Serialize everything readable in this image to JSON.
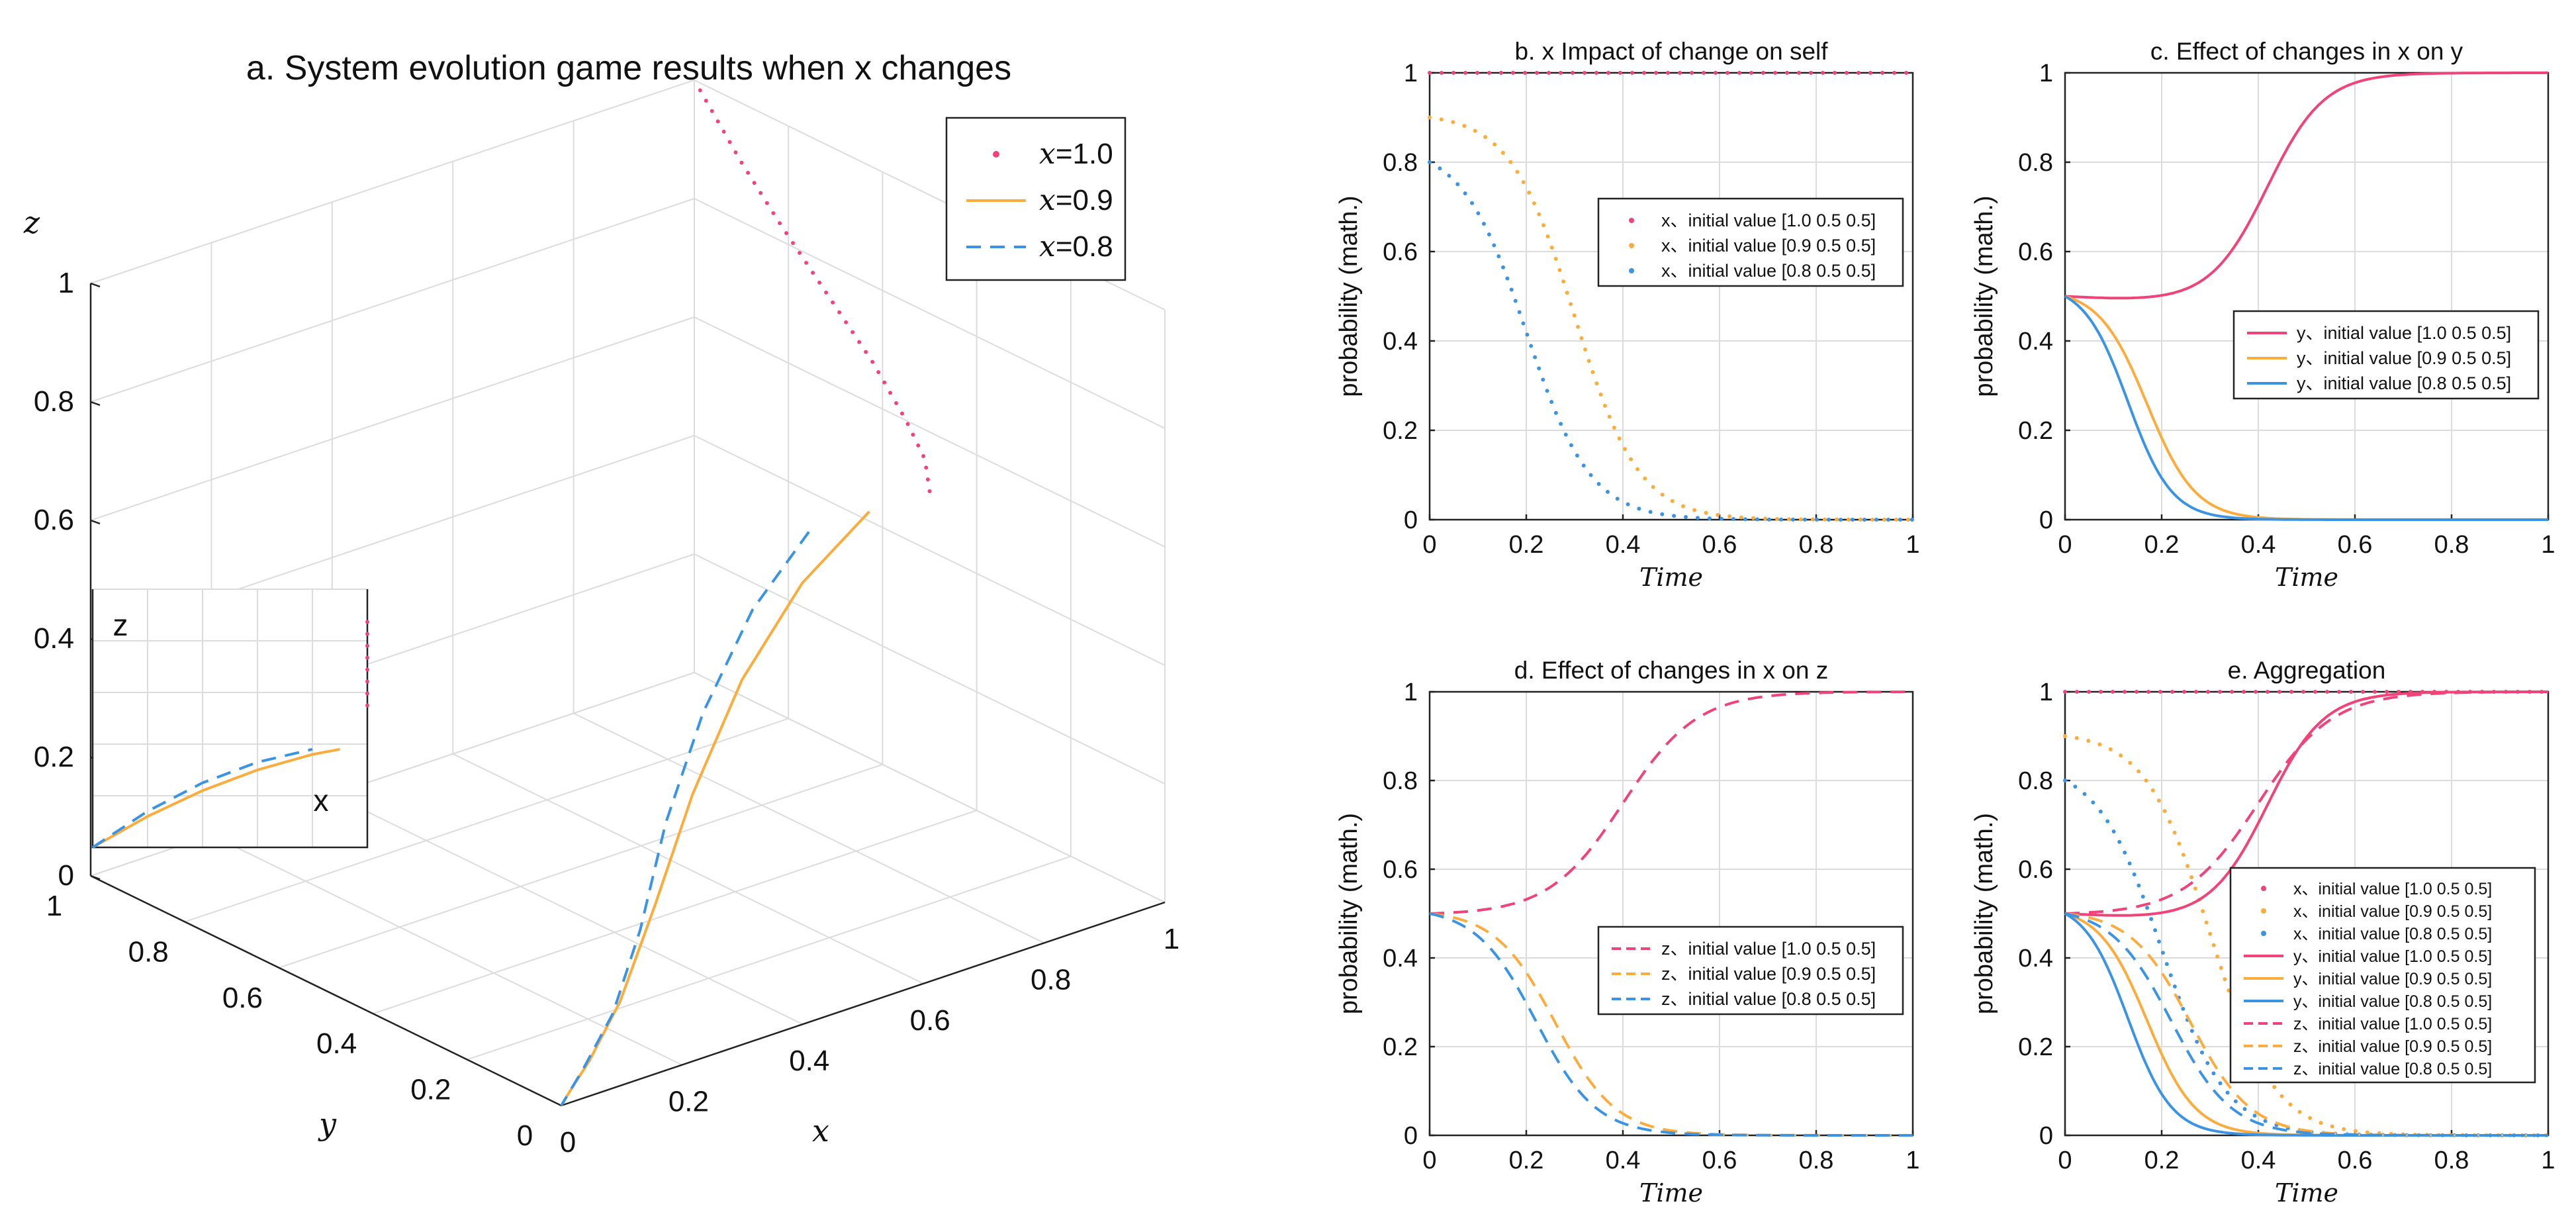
{
  "colors": {
    "pink": "#f0437a",
    "orange": "#fbac3c",
    "blue": "#3a94e3"
  },
  "chart_data": [
    {
      "id": "a",
      "type": "line3d",
      "title": "a. System evolution game results when x changes",
      "xlabel": "x",
      "ylabel": "y",
      "zlabel": "z",
      "xlim": [
        0,
        1
      ],
      "ylim": [
        0,
        1
      ],
      "zlim": [
        0,
        1
      ],
      "x_ticks": [
        "0",
        "0.2",
        "0.4",
        "0.6",
        "0.8",
        "1"
      ],
      "y_ticks": [
        "0",
        "0.2",
        "0.4",
        "0.6",
        "0.8",
        "1"
      ],
      "z_ticks": [
        "0",
        "0.2",
        "0.4",
        "0.6",
        "0.8",
        "1"
      ],
      "legend": [
        {
          "label": "x=1.0",
          "var": "x",
          "value": "=1.0",
          "color": "pink",
          "style": "dots"
        },
        {
          "label": "x=0.9",
          "var": "x",
          "value": "=0.9",
          "color": "orange",
          "style": "solid"
        },
        {
          "label": "x=0.8",
          "var": "x",
          "value": "=0.8",
          "color": "blue",
          "style": "dashed"
        }
      ],
      "series": [
        {
          "name": "x=1.0",
          "color": "pink",
          "style": "dots",
          "points": [
            [
              1,
              0.5,
              0.5
            ],
            [
              1,
              0.51,
              0.55
            ],
            [
              1,
              0.55,
              0.6
            ],
            [
              1,
              0.62,
              0.67
            ],
            [
              1,
              0.72,
              0.75
            ],
            [
              1,
              0.82,
              0.83
            ],
            [
              1,
              0.9,
              0.9
            ],
            [
              1,
              0.96,
              0.96
            ],
            [
              1,
              0.99,
              0.99
            ],
            [
              1,
              1,
              1
            ]
          ]
        },
        {
          "name": "x=0.9",
          "color": "orange",
          "style": "solid",
          "points": [
            [
              0.9,
              0.5,
              0.5
            ],
            [
              0.75,
              0.45,
              0.45
            ],
            [
              0.58,
              0.36,
              0.38
            ],
            [
              0.42,
              0.26,
              0.28
            ],
            [
              0.28,
              0.16,
              0.18
            ],
            [
              0.16,
              0.08,
              0.09
            ],
            [
              0.07,
              0.03,
              0.04
            ],
            [
              0.02,
              0.01,
              0.01
            ],
            [
              0,
              0,
              0
            ]
          ]
        },
        {
          "name": "x=0.8",
          "color": "blue",
          "style": "dashed",
          "points": [
            [
              0.8,
              0.5,
              0.5
            ],
            [
              0.66,
              0.44,
              0.44
            ],
            [
              0.5,
              0.34,
              0.36
            ],
            [
              0.36,
              0.24,
              0.26
            ],
            [
              0.24,
              0.14,
              0.16
            ],
            [
              0.14,
              0.07,
              0.08
            ],
            [
              0.06,
              0.03,
              0.03
            ],
            [
              0.02,
              0.01,
              0.01
            ],
            [
              0,
              0,
              0
            ]
          ]
        }
      ],
      "inset": {
        "zlabel": "z",
        "xlabel": "x",
        "series": [
          {
            "name": "x=1.0",
            "color": "pink",
            "style": "dots",
            "points": [
              [
                1,
                0.55
              ],
              [
                1,
                0.9
              ]
            ]
          },
          {
            "name": "x=0.9",
            "color": "orange",
            "style": "solid",
            "points": [
              [
                0,
                0
              ],
              [
                0.2,
                0.12
              ],
              [
                0.4,
                0.22
              ],
              [
                0.6,
                0.3
              ],
              [
                0.8,
                0.36
              ],
              [
                0.9,
                0.38
              ]
            ]
          },
          {
            "name": "x=0.8",
            "color": "blue",
            "style": "dashed",
            "points": [
              [
                0,
                0
              ],
              [
                0.2,
                0.14
              ],
              [
                0.4,
                0.25
              ],
              [
                0.6,
                0.33
              ],
              [
                0.8,
                0.38
              ]
            ]
          }
        ]
      }
    },
    {
      "id": "b",
      "type": "line",
      "title": "b. x Impact of change on self",
      "xlabel": "Time",
      "ylabel": "probability (math.)",
      "xlim": [
        0,
        1
      ],
      "ylim": [
        0,
        1
      ],
      "x_ticks": [
        "0",
        "0.2",
        "0.4",
        "0.6",
        "0.8",
        "1"
      ],
      "y_ticks": [
        "0",
        "0.2",
        "0.4",
        "0.6",
        "0.8",
        "1"
      ],
      "legend_position": "center-right",
      "series": [
        {
          "name": "x、initial value [1.0 0.5 0.5]",
          "color": "pink",
          "style": "dots",
          "start": 1.0,
          "kind": "constant"
        },
        {
          "name": "x、initial value [0.9 0.5 0.5]",
          "color": "orange",
          "style": "dots",
          "start": 0.9,
          "kind": "decay",
          "mid": 0.3,
          "k": 15
        },
        {
          "name": "x、initial value [0.8 0.5 0.5]",
          "color": "blue",
          "style": "dots",
          "start": 0.8,
          "kind": "decay",
          "mid": 0.2,
          "k": 15
        }
      ]
    },
    {
      "id": "c",
      "type": "line",
      "title": "c. Effect of changes in x on y",
      "xlabel": "Time",
      "ylabel": "probability (math.)",
      "xlim": [
        0,
        1
      ],
      "ylim": [
        0,
        1
      ],
      "x_ticks": [
        "0",
        "0.2",
        "0.4",
        "0.6",
        "0.8",
        "1"
      ],
      "y_ticks": [
        "0",
        "0.2",
        "0.4",
        "0.6",
        "0.8",
        "1"
      ],
      "legend_position": "center-right",
      "series": [
        {
          "name": "y、initial value [1.0 0.5 0.5]",
          "color": "pink",
          "style": "solid",
          "kind": "rise",
          "start": 0.5,
          "dip": 0.49,
          "mid": 0.42,
          "k": 17
        },
        {
          "name": "y、initial value [0.9 0.5 0.5]",
          "color": "orange",
          "style": "solid",
          "kind": "fall",
          "start": 0.5,
          "mid": 0.17,
          "k": 20
        },
        {
          "name": "y、initial value [0.8 0.5 0.5]",
          "color": "blue",
          "style": "solid",
          "kind": "fall",
          "start": 0.5,
          "mid": 0.13,
          "k": 22
        }
      ]
    },
    {
      "id": "d",
      "type": "line",
      "title": "d. Effect of changes in x on z",
      "xlabel": "Time",
      "ylabel": "probability (math.)",
      "xlim": [
        0,
        1
      ],
      "ylim": [
        0,
        1
      ],
      "x_ticks": [
        "0",
        "0.2",
        "0.4",
        "0.6",
        "0.8",
        "1"
      ],
      "y_ticks": [
        "0",
        "0.2",
        "0.4",
        "0.6",
        "0.8",
        "1"
      ],
      "legend_position": "center-right",
      "series": [
        {
          "name": "z、initial value [1.0 0.5 0.5]",
          "color": "pink",
          "style": "dashed",
          "kind": "rise",
          "start": 0.5,
          "dip": 0.5,
          "mid": 0.4,
          "k": 13
        },
        {
          "name": "z、initial value [0.9 0.5 0.5]",
          "color": "orange",
          "style": "dashed",
          "kind": "fall",
          "start": 0.5,
          "mid": 0.26,
          "k": 16
        },
        {
          "name": "z、initial value [0.8 0.5 0.5]",
          "color": "blue",
          "style": "dashed",
          "kind": "fall",
          "start": 0.5,
          "mid": 0.22,
          "k": 16
        }
      ]
    },
    {
      "id": "e",
      "type": "line",
      "title": "e. Aggregation",
      "xlabel": "Time",
      "ylabel": "probability (math.)",
      "xlim": [
        0,
        1
      ],
      "ylim": [
        0,
        1
      ],
      "x_ticks": [
        "0",
        "0.2",
        "0.4",
        "0.6",
        "0.8",
        "1"
      ],
      "y_ticks": [
        "0",
        "0.2",
        "0.4",
        "0.6",
        "0.8",
        "1"
      ],
      "legend_position": "lower-right",
      "series": [
        {
          "name": "x、initial value [1.0 0.5 0.5]",
          "color": "pink",
          "style": "dots",
          "start": 1.0,
          "kind": "constant"
        },
        {
          "name": "x、initial value [0.9 0.5 0.5]",
          "color": "orange",
          "style": "dots",
          "start": 0.9,
          "kind": "decay",
          "mid": 0.3,
          "k": 15
        },
        {
          "name": "x、initial value [0.8 0.5 0.5]",
          "color": "blue",
          "style": "dots",
          "start": 0.8,
          "kind": "decay",
          "mid": 0.2,
          "k": 15
        },
        {
          "name": "y、initial value [1.0 0.5 0.5]",
          "color": "pink",
          "style": "solid",
          "kind": "rise",
          "start": 0.5,
          "dip": 0.49,
          "mid": 0.42,
          "k": 17
        },
        {
          "name": "y、initial value [0.9 0.5 0.5]",
          "color": "orange",
          "style": "solid",
          "kind": "fall",
          "start": 0.5,
          "mid": 0.17,
          "k": 20
        },
        {
          "name": "y、initial value [0.8 0.5 0.5]",
          "color": "blue",
          "style": "solid",
          "kind": "fall",
          "start": 0.5,
          "mid": 0.13,
          "k": 22
        },
        {
          "name": "z、initial value [1.0 0.5 0.5]",
          "color": "pink",
          "style": "dashed",
          "kind": "rise",
          "start": 0.5,
          "dip": 0.5,
          "mid": 0.4,
          "k": 13
        },
        {
          "name": "z、initial value [0.9 0.5 0.5]",
          "color": "orange",
          "style": "dashed",
          "kind": "fall",
          "start": 0.5,
          "mid": 0.26,
          "k": 16
        },
        {
          "name": "z、initial value [0.8 0.5 0.5]",
          "color": "blue",
          "style": "dashed",
          "kind": "fall",
          "start": 0.5,
          "mid": 0.22,
          "k": 16
        }
      ]
    }
  ]
}
